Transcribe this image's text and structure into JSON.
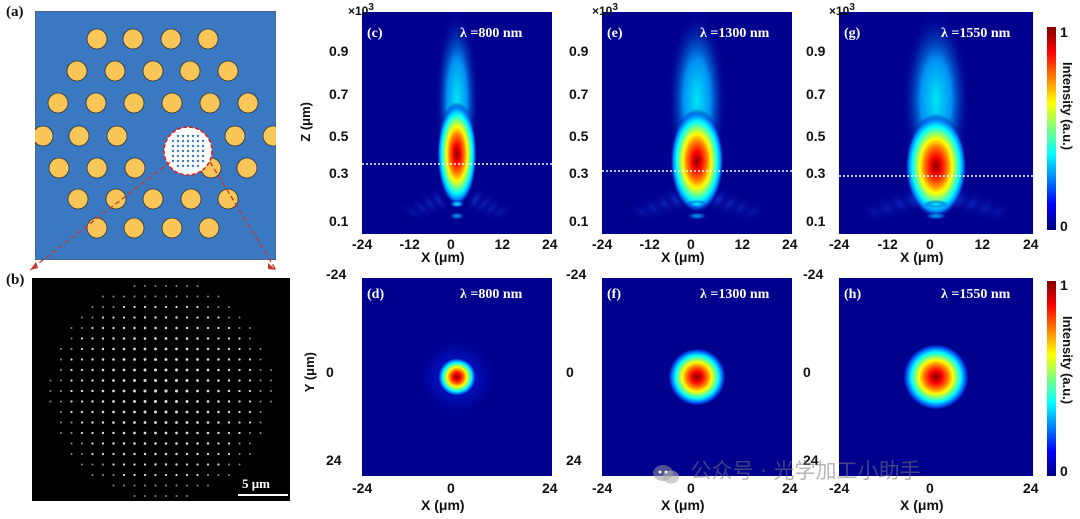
{
  "panels": {
    "a": {
      "label": "(a)"
    },
    "b": {
      "label": "(b)",
      "scalebar": "5 μm"
    },
    "c": {
      "label": "(c)",
      "wavelength": "λ =800 nm"
    },
    "e": {
      "label": "(e)",
      "wavelength": "λ =1300 nm"
    },
    "g": {
      "label": "(g)",
      "wavelength": "λ =1550 nm"
    },
    "d": {
      "label": "(d)",
      "wavelength": "λ =800 nm"
    },
    "f": {
      "label": "(f)",
      "wavelength": "λ =1300 nm"
    },
    "h": {
      "label": "(h)",
      "wavelength": "λ =1550 nm"
    }
  },
  "axes": {
    "top": {
      "x_label": "X (μm)",
      "y_label": "Z (μm)",
      "exponent": "×10",
      "exponent_power": "3",
      "x_ticks": [
        "-24",
        "-12",
        "0",
        "12",
        "24"
      ],
      "y_ticks": [
        "0.9",
        "0.7",
        "0.5",
        "0.3",
        "0.1"
      ]
    },
    "bottom": {
      "x_label": "X (μm)",
      "y_label": "Y (μm)",
      "x_ticks": [
        "-24",
        "0",
        "24"
      ],
      "y_ticks": [
        "-24",
        "0",
        "24"
      ]
    }
  },
  "colorbar": {
    "label": "Intensity (a.u.)",
    "max": "1",
    "min": "0",
    "colors": [
      "#00007f",
      "#0000ff",
      "#007fff",
      "#00ffff",
      "#7fff7f",
      "#ffff00",
      "#ff7f00",
      "#ff0000",
      "#7f0000"
    ]
  },
  "watermark": "公众号 · 光学加工小助手",
  "colors": {
    "fiber_background": "#3a78c2",
    "rod": "#fbc658",
    "field_background": "#00008f"
  }
}
